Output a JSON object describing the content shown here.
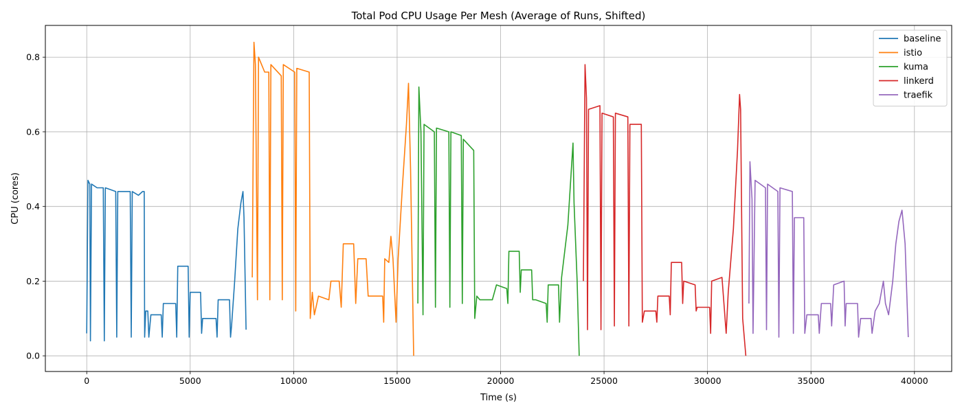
{
  "chart_data": {
    "type": "line",
    "title": "Total Pod CPU Usage Per Mesh (Average of Runs, Shifted)",
    "xlabel": "Time (s)",
    "ylabel": "CPU (cores)",
    "xlim": [
      -2000,
      41800
    ],
    "ylim": [
      -0.042,
      0.885
    ],
    "x_ticks": [
      0,
      5000,
      10000,
      15000,
      20000,
      25000,
      30000,
      35000,
      40000
    ],
    "x_tick_labels": [
      "0",
      "5000",
      "10000",
      "15000",
      "20000",
      "25000",
      "30000",
      "35000",
      "40000"
    ],
    "y_ticks": [
      0.0,
      0.2,
      0.4,
      0.6,
      0.8
    ],
    "y_tick_labels": [
      "0.0",
      "0.2",
      "0.4",
      "0.6",
      "0.8"
    ],
    "grid": true,
    "legend_position": "top-right",
    "series": [
      {
        "name": "baseline",
        "color": "#1f77b4",
        "points": [
          [
            0,
            0.06
          ],
          [
            60,
            0.47
          ],
          [
            150,
            0.46
          ],
          [
            180,
            0.04
          ],
          [
            230,
            0.46
          ],
          [
            500,
            0.45
          ],
          [
            800,
            0.45
          ],
          [
            850,
            0.04
          ],
          [
            900,
            0.45
          ],
          [
            1400,
            0.44
          ],
          [
            1450,
            0.05
          ],
          [
            1500,
            0.44
          ],
          [
            2100,
            0.44
          ],
          [
            2150,
            0.05
          ],
          [
            2200,
            0.44
          ],
          [
            2500,
            0.43
          ],
          [
            2700,
            0.44
          ],
          [
            2780,
            0.44
          ],
          [
            2800,
            0.05
          ],
          [
            2850,
            0.12
          ],
          [
            2950,
            0.12
          ],
          [
            3000,
            0.05
          ],
          [
            3100,
            0.11
          ],
          [
            3600,
            0.11
          ],
          [
            3650,
            0.05
          ],
          [
            3700,
            0.14
          ],
          [
            4300,
            0.14
          ],
          [
            4350,
            0.05
          ],
          [
            4400,
            0.24
          ],
          [
            4900,
            0.24
          ],
          [
            4950,
            0.05
          ],
          [
            5000,
            0.17
          ],
          [
            5500,
            0.17
          ],
          [
            5550,
            0.06
          ],
          [
            5600,
            0.1
          ],
          [
            6250,
            0.1
          ],
          [
            6300,
            0.05
          ],
          [
            6350,
            0.15
          ],
          [
            6900,
            0.15
          ],
          [
            6950,
            0.05
          ],
          [
            7000,
            0.08
          ],
          [
            7150,
            0.2
          ],
          [
            7300,
            0.34
          ],
          [
            7450,
            0.41
          ],
          [
            7550,
            0.44
          ],
          [
            7600,
            0.37
          ],
          [
            7700,
            0.07
          ]
        ]
      },
      {
        "name": "istio",
        "color": "#ff7f0e",
        "points": [
          [
            8000,
            0.21
          ],
          [
            8080,
            0.84
          ],
          [
            8150,
            0.78
          ],
          [
            8250,
            0.15
          ],
          [
            8300,
            0.8
          ],
          [
            8600,
            0.76
          ],
          [
            8800,
            0.76
          ],
          [
            8850,
            0.15
          ],
          [
            8900,
            0.78
          ],
          [
            9400,
            0.75
          ],
          [
            9450,
            0.15
          ],
          [
            9500,
            0.78
          ],
          [
            10050,
            0.76
          ],
          [
            10100,
            0.12
          ],
          [
            10150,
            0.77
          ],
          [
            10750,
            0.76
          ],
          [
            10800,
            0.1
          ],
          [
            10900,
            0.17
          ],
          [
            11000,
            0.11
          ],
          [
            11200,
            0.16
          ],
          [
            11700,
            0.15
          ],
          [
            11800,
            0.2
          ],
          [
            12200,
            0.2
          ],
          [
            12300,
            0.13
          ],
          [
            12400,
            0.3
          ],
          [
            12900,
            0.3
          ],
          [
            13000,
            0.14
          ],
          [
            13100,
            0.26
          ],
          [
            13500,
            0.26
          ],
          [
            13600,
            0.16
          ],
          [
            14000,
            0.16
          ],
          [
            14300,
            0.16
          ],
          [
            14350,
            0.09
          ],
          [
            14400,
            0.26
          ],
          [
            14600,
            0.25
          ],
          [
            14700,
            0.32
          ],
          [
            14800,
            0.26
          ],
          [
            14950,
            0.09
          ],
          [
            15050,
            0.26
          ],
          [
            15250,
            0.45
          ],
          [
            15450,
            0.62
          ],
          [
            15550,
            0.73
          ],
          [
            15650,
            0.5
          ],
          [
            15800,
            0.0
          ]
        ]
      },
      {
        "name": "kuma",
        "color": "#2ca02c",
        "points": [
          [
            16000,
            0.14
          ],
          [
            16050,
            0.72
          ],
          [
            16150,
            0.6
          ],
          [
            16250,
            0.11
          ],
          [
            16300,
            0.62
          ],
          [
            16800,
            0.6
          ],
          [
            16850,
            0.13
          ],
          [
            16900,
            0.61
          ],
          [
            17500,
            0.6
          ],
          [
            17550,
            0.13
          ],
          [
            17600,
            0.6
          ],
          [
            18100,
            0.59
          ],
          [
            18150,
            0.14
          ],
          [
            18200,
            0.58
          ],
          [
            18700,
            0.55
          ],
          [
            18750,
            0.1
          ],
          [
            18850,
            0.16
          ],
          [
            19000,
            0.15
          ],
          [
            19600,
            0.15
          ],
          [
            19800,
            0.19
          ],
          [
            20300,
            0.18
          ],
          [
            20350,
            0.14
          ],
          [
            20400,
            0.28
          ],
          [
            20900,
            0.28
          ],
          [
            20950,
            0.17
          ],
          [
            21000,
            0.23
          ],
          [
            21500,
            0.23
          ],
          [
            21550,
            0.15
          ],
          [
            21700,
            0.15
          ],
          [
            22200,
            0.14
          ],
          [
            22250,
            0.09
          ],
          [
            22300,
            0.19
          ],
          [
            22800,
            0.19
          ],
          [
            22850,
            0.09
          ],
          [
            22950,
            0.21
          ],
          [
            23250,
            0.35
          ],
          [
            23500,
            0.57
          ],
          [
            23550,
            0.41
          ],
          [
            23700,
            0.2
          ],
          [
            23800,
            0.0
          ]
        ]
      },
      {
        "name": "linkerd",
        "color": "#d62728",
        "points": [
          [
            24000,
            0.2
          ],
          [
            24080,
            0.78
          ],
          [
            24150,
            0.69
          ],
          [
            24200,
            0.07
          ],
          [
            24250,
            0.66
          ],
          [
            24800,
            0.67
          ],
          [
            24850,
            0.07
          ],
          [
            24900,
            0.65
          ],
          [
            25450,
            0.64
          ],
          [
            25500,
            0.08
          ],
          [
            25550,
            0.65
          ],
          [
            26150,
            0.64
          ],
          [
            26200,
            0.08
          ],
          [
            26250,
            0.62
          ],
          [
            26800,
            0.62
          ],
          [
            26850,
            0.09
          ],
          [
            26950,
            0.12
          ],
          [
            27500,
            0.12
          ],
          [
            27550,
            0.09
          ],
          [
            27600,
            0.16
          ],
          [
            28150,
            0.16
          ],
          [
            28200,
            0.11
          ],
          [
            28250,
            0.25
          ],
          [
            28750,
            0.25
          ],
          [
            28800,
            0.14
          ],
          [
            28850,
            0.2
          ],
          [
            29400,
            0.19
          ],
          [
            29450,
            0.12
          ],
          [
            29500,
            0.13
          ],
          [
            30100,
            0.13
          ],
          [
            30150,
            0.06
          ],
          [
            30200,
            0.2
          ],
          [
            30700,
            0.21
          ],
          [
            30900,
            0.06
          ],
          [
            31000,
            0.17
          ],
          [
            31250,
            0.34
          ],
          [
            31450,
            0.55
          ],
          [
            31550,
            0.7
          ],
          [
            31600,
            0.66
          ],
          [
            31700,
            0.1
          ],
          [
            31850,
            0.0
          ]
        ]
      },
      {
        "name": "traefik",
        "color": "#9467bd",
        "points": [
          [
            32000,
            0.14
          ],
          [
            32050,
            0.52
          ],
          [
            32150,
            0.42
          ],
          [
            32200,
            0.06
          ],
          [
            32300,
            0.47
          ],
          [
            32800,
            0.45
          ],
          [
            32850,
            0.07
          ],
          [
            32900,
            0.46
          ],
          [
            33400,
            0.44
          ],
          [
            33450,
            0.05
          ],
          [
            33500,
            0.45
          ],
          [
            34100,
            0.44
          ],
          [
            34150,
            0.06
          ],
          [
            34200,
            0.37
          ],
          [
            34650,
            0.37
          ],
          [
            34700,
            0.06
          ],
          [
            34800,
            0.11
          ],
          [
            35350,
            0.11
          ],
          [
            35400,
            0.06
          ],
          [
            35500,
            0.14
          ],
          [
            35950,
            0.14
          ],
          [
            36000,
            0.08
          ],
          [
            36100,
            0.19
          ],
          [
            36600,
            0.2
          ],
          [
            36650,
            0.08
          ],
          [
            36700,
            0.14
          ],
          [
            37250,
            0.14
          ],
          [
            37300,
            0.05
          ],
          [
            37400,
            0.1
          ],
          [
            37900,
            0.1
          ],
          [
            37950,
            0.06
          ],
          [
            38100,
            0.12
          ],
          [
            38300,
            0.14
          ],
          [
            38500,
            0.2
          ],
          [
            38600,
            0.14
          ],
          [
            38750,
            0.11
          ],
          [
            38950,
            0.2
          ],
          [
            39100,
            0.3
          ],
          [
            39250,
            0.36
          ],
          [
            39400,
            0.39
          ],
          [
            39550,
            0.3
          ],
          [
            39700,
            0.05
          ]
        ]
      }
    ]
  }
}
